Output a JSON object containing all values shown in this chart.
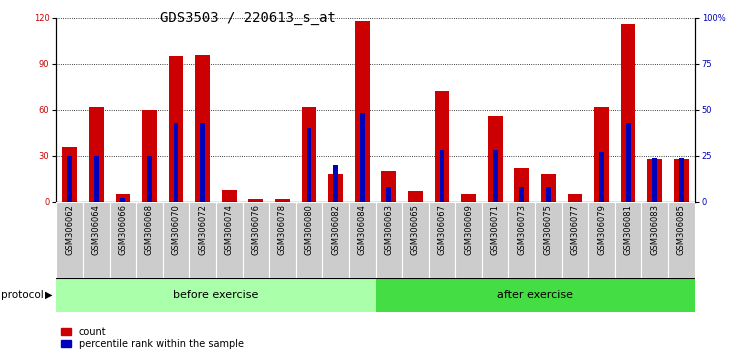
{
  "title": "GDS3503 / 220613_s_at",
  "categories": [
    "GSM306062",
    "GSM306064",
    "GSM306066",
    "GSM306068",
    "GSM306070",
    "GSM306072",
    "GSM306074",
    "GSM306076",
    "GSM306078",
    "GSM306080",
    "GSM306082",
    "GSM306084",
    "GSM306063",
    "GSM306065",
    "GSM306067",
    "GSM306069",
    "GSM306071",
    "GSM306073",
    "GSM306075",
    "GSM306077",
    "GSM306079",
    "GSM306081",
    "GSM306083",
    "GSM306085"
  ],
  "count_values": [
    36,
    62,
    5,
    60,
    95,
    96,
    8,
    2,
    2,
    62,
    18,
    118,
    20,
    7,
    72,
    5,
    56,
    22,
    18,
    5,
    62,
    116,
    28,
    28
  ],
  "percentile_values": [
    25,
    25,
    2,
    25,
    43,
    43,
    0,
    0,
    0,
    40,
    20,
    48,
    8,
    0,
    28,
    0,
    28,
    8,
    8,
    0,
    27,
    43,
    24,
    24
  ],
  "n_before": 12,
  "n_after": 12,
  "before_label": "before exercise",
  "after_label": "after exercise",
  "protocol_label": "protocol",
  "before_color": "#aaffaa",
  "after_color": "#44dd44",
  "bar_color_count": "#cc0000",
  "bar_color_pct": "#0000bb",
  "legend_count": "count",
  "legend_pct": "percentile rank within the sample",
  "ylim_left": [
    0,
    120
  ],
  "ylim_right": [
    0,
    100
  ],
  "yticks_left": [
    0,
    30,
    60,
    90,
    120
  ],
  "yticks_right": [
    0,
    25,
    50,
    75,
    100
  ],
  "ytick_labels_right": [
    "0",
    "25",
    "50",
    "75",
    "100%"
  ],
  "title_fontsize": 10,
  "tick_fontsize": 6,
  "label_fontsize": 7.5,
  "bar_width": 0.55,
  "pct_bar_width": 0.18
}
